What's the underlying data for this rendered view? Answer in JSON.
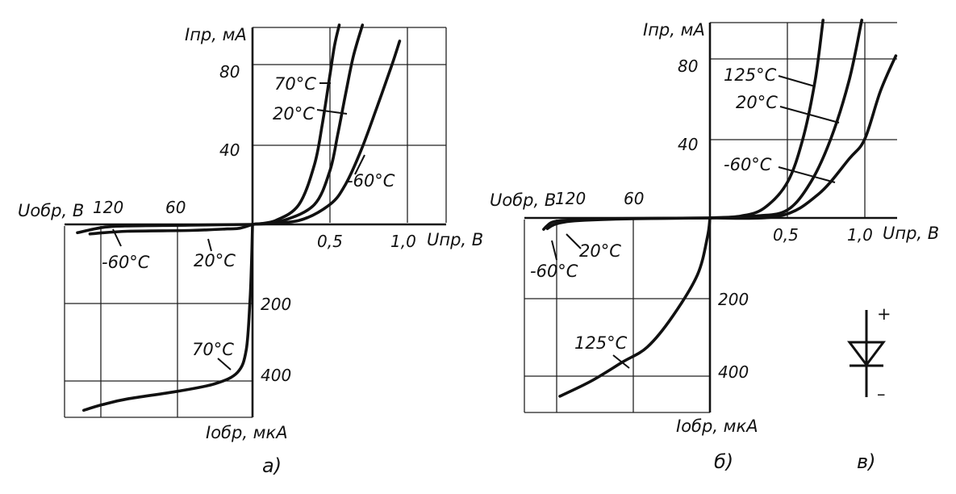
{
  "chart_data": [
    {
      "panel": "а)",
      "type": "line",
      "xlabel_forward": "Uпр, В",
      "ylabel_forward": "Iпр, мА",
      "xlabel_reverse": "Uобр, В",
      "ylabel_reverse": "Iобр, мкА",
      "forward_xticks": [
        "0,5",
        "1,0"
      ],
      "forward_yticks": [
        "40",
        "80"
      ],
      "reverse_xticks": [
        "120",
        "60"
      ],
      "reverse_yticks": [
        "200",
        "400"
      ],
      "forward_xlim": [
        0,
        1.25
      ],
      "forward_ylim": [
        0,
        100
      ],
      "reverse_xlim": [
        0,
        150
      ],
      "reverse_ylim": [
        0,
        500
      ],
      "forward_series": [
        {
          "name": "70°C",
          "x": [
            0,
            0.15,
            0.3,
            0.4,
            0.45,
            0.5,
            0.53,
            0.56
          ],
          "y": [
            0,
            2,
            10,
            30,
            50,
            75,
            90,
            100
          ]
        },
        {
          "name": "20°C",
          "x": [
            0,
            0.2,
            0.4,
            0.5,
            0.55,
            0.6,
            0.65,
            0.71
          ],
          "y": [
            0,
            2,
            10,
            27,
            45,
            65,
            84,
            100
          ]
        },
        {
          "name": "-60°C",
          "x": [
            0,
            0.3,
            0.5,
            0.6,
            0.7,
            0.8,
            0.9,
            0.95
          ],
          "y": [
            0,
            2,
            10,
            20,
            37,
            58,
            80,
            92
          ]
        }
      ],
      "reverse_series": [
        {
          "name": "-60°C",
          "x": [
            0,
            50,
            100,
            120,
            140
          ],
          "y": [
            0,
            2,
            4,
            8,
            22
          ]
        },
        {
          "name": "20°C",
          "x": [
            0,
            10,
            20,
            50,
            100,
            130
          ],
          "y": [
            0,
            10,
            12,
            16,
            18,
            25
          ]
        },
        {
          "name": "70°C",
          "x": [
            0,
            0.8,
            2,
            5,
            12,
            30,
            60,
            100,
            120,
            135
          ],
          "y": [
            0,
            100,
            200,
            330,
            390,
            420,
            440,
            460,
            475,
            490
          ]
        }
      ]
    },
    {
      "panel": "б)",
      "type": "line",
      "xlabel_forward": "Uпр, В",
      "ylabel_forward": "Iпр, мА",
      "xlabel_reverse": "Uобр, В",
      "ylabel_reverse": "Iобр, мкА",
      "forward_xticks": [
        "0,5",
        "1,0"
      ],
      "forward_yticks": [
        "40",
        "80"
      ],
      "reverse_xticks": [
        "120",
        "60"
      ],
      "reverse_yticks": [
        "200",
        "400"
      ],
      "forward_xlim": [
        0,
        1.2
      ],
      "forward_ylim": [
        0,
        100
      ],
      "reverse_xlim": [
        0,
        150
      ],
      "reverse_ylim": [
        0,
        500
      ],
      "forward_series": [
        {
          "name": "125°C",
          "x": [
            0,
            0.2,
            0.35,
            0.5,
            0.6,
            0.68,
            0.73
          ],
          "y": [
            0,
            1,
            5,
            18,
            40,
            70,
            100
          ]
        },
        {
          "name": "20°C",
          "x": [
            0,
            0.3,
            0.5,
            0.65,
            0.78,
            0.9,
            0.98
          ],
          "y": [
            0,
            1,
            4,
            18,
            40,
            70,
            100
          ]
        },
        {
          "name": "-60°C",
          "x": [
            0,
            0.45,
            0.7,
            0.9,
            1.0,
            1.1,
            1.2
          ],
          "y": [
            0,
            1,
            12,
            30,
            40,
            64,
            82
          ]
        }
      ],
      "reverse_series": [
        {
          "name": "-60°C",
          "x": [
            0,
            80,
            110,
            125,
            130,
            133
          ],
          "y": [
            0,
            2,
            5,
            10,
            20,
            30
          ]
        },
        {
          "name": "20°C",
          "x": [
            0,
            60,
            100,
            115,
            125,
            130
          ],
          "y": [
            0,
            2,
            6,
            10,
            18,
            28
          ]
        },
        {
          "name": "125°C",
          "x": [
            0,
            2,
            10,
            30,
            50,
            70,
            95,
            120
          ],
          "y": [
            0,
            50,
            150,
            260,
            340,
            380,
            430,
            470
          ]
        }
      ]
    }
  ],
  "panels": {
    "a": {
      "caption": "а)",
      "ylabel_forward": "Iпр, мА",
      "xlabel_forward": "Uпр, В",
      "xlabel_reverse": "Uобр, В",
      "ylabel_reverse": "Iобр, мкА",
      "ytick_80": "80",
      "ytick_40": "40",
      "xtick_05": "0,5",
      "xtick_10": "1,0",
      "rtick_120": "120",
      "rtick_60": "60",
      "rytick_200": "200",
      "rytick_400": "400",
      "lbl_70": "70°C",
      "lbl_20": "20°C",
      "lbl_m60": "-60°C",
      "lbl_rev_m60": "-60°C",
      "lbl_rev_20": "20°C",
      "lbl_rev_70": "70°C"
    },
    "b": {
      "caption": "б)",
      "ylabel_forward": "Iпр, мА",
      "xlabel_forward": "Uпр, В",
      "xlabel_reverse": "Uобр, В",
      "ylabel_reverse": "Iобр, мкА",
      "ytick_80": "80",
      "ytick_40": "40",
      "xtick_05": "0,5",
      "xtick_10": "1,0",
      "rtick_120": "120",
      "rtick_60": "60",
      "rytick_200": "200",
      "rytick_400": "400",
      "lbl_125": "125°C",
      "lbl_20": "20°C",
      "lbl_m60": "-60°C",
      "lbl_rev_20": "20°C",
      "lbl_rev_m60": "-60°C",
      "lbl_rev_125": "125°C"
    },
    "c": {
      "caption": "в)",
      "plus": "+",
      "minus": "–",
      "icon": "diode-symbol-icon"
    }
  }
}
